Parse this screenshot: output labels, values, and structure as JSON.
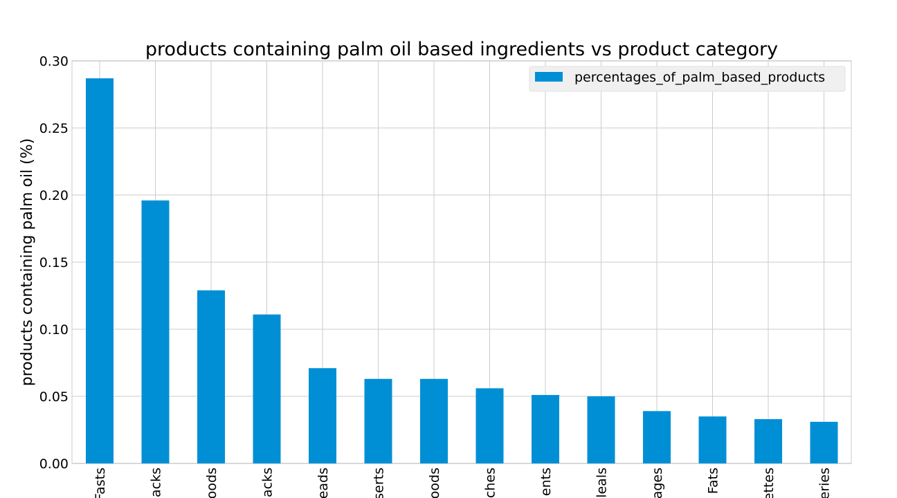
{
  "chart_data": {
    "type": "bar",
    "title": "products containing palm oil based ingredients vs product category",
    "xlabel": "",
    "ylabel": "products containing palm oil (%)",
    "ylim": [
      0,
      0.3
    ],
    "yticks": [
      "0.00",
      "0.05",
      "0.10",
      "0.15",
      "0.20",
      "0.25",
      "0.30"
    ],
    "grid": true,
    "legend": {
      "position": "top-right",
      "entries": [
        "percentages_of_palm_based_products"
      ]
    },
    "categories": [
      "Fasts",
      "acks",
      "oods",
      "acks",
      "eads",
      "serts",
      "oods",
      "ches",
      "ents",
      "leals",
      "ages",
      "Fats",
      "ettes",
      "eries"
    ],
    "series": [
      {
        "name": "percentages_of_palm_based_products",
        "color": "#008fd5",
        "values": [
          0.287,
          0.196,
          0.129,
          0.111,
          0.071,
          0.063,
          0.063,
          0.056,
          0.051,
          0.05,
          0.039,
          0.035,
          0.033,
          0.031
        ]
      }
    ]
  }
}
